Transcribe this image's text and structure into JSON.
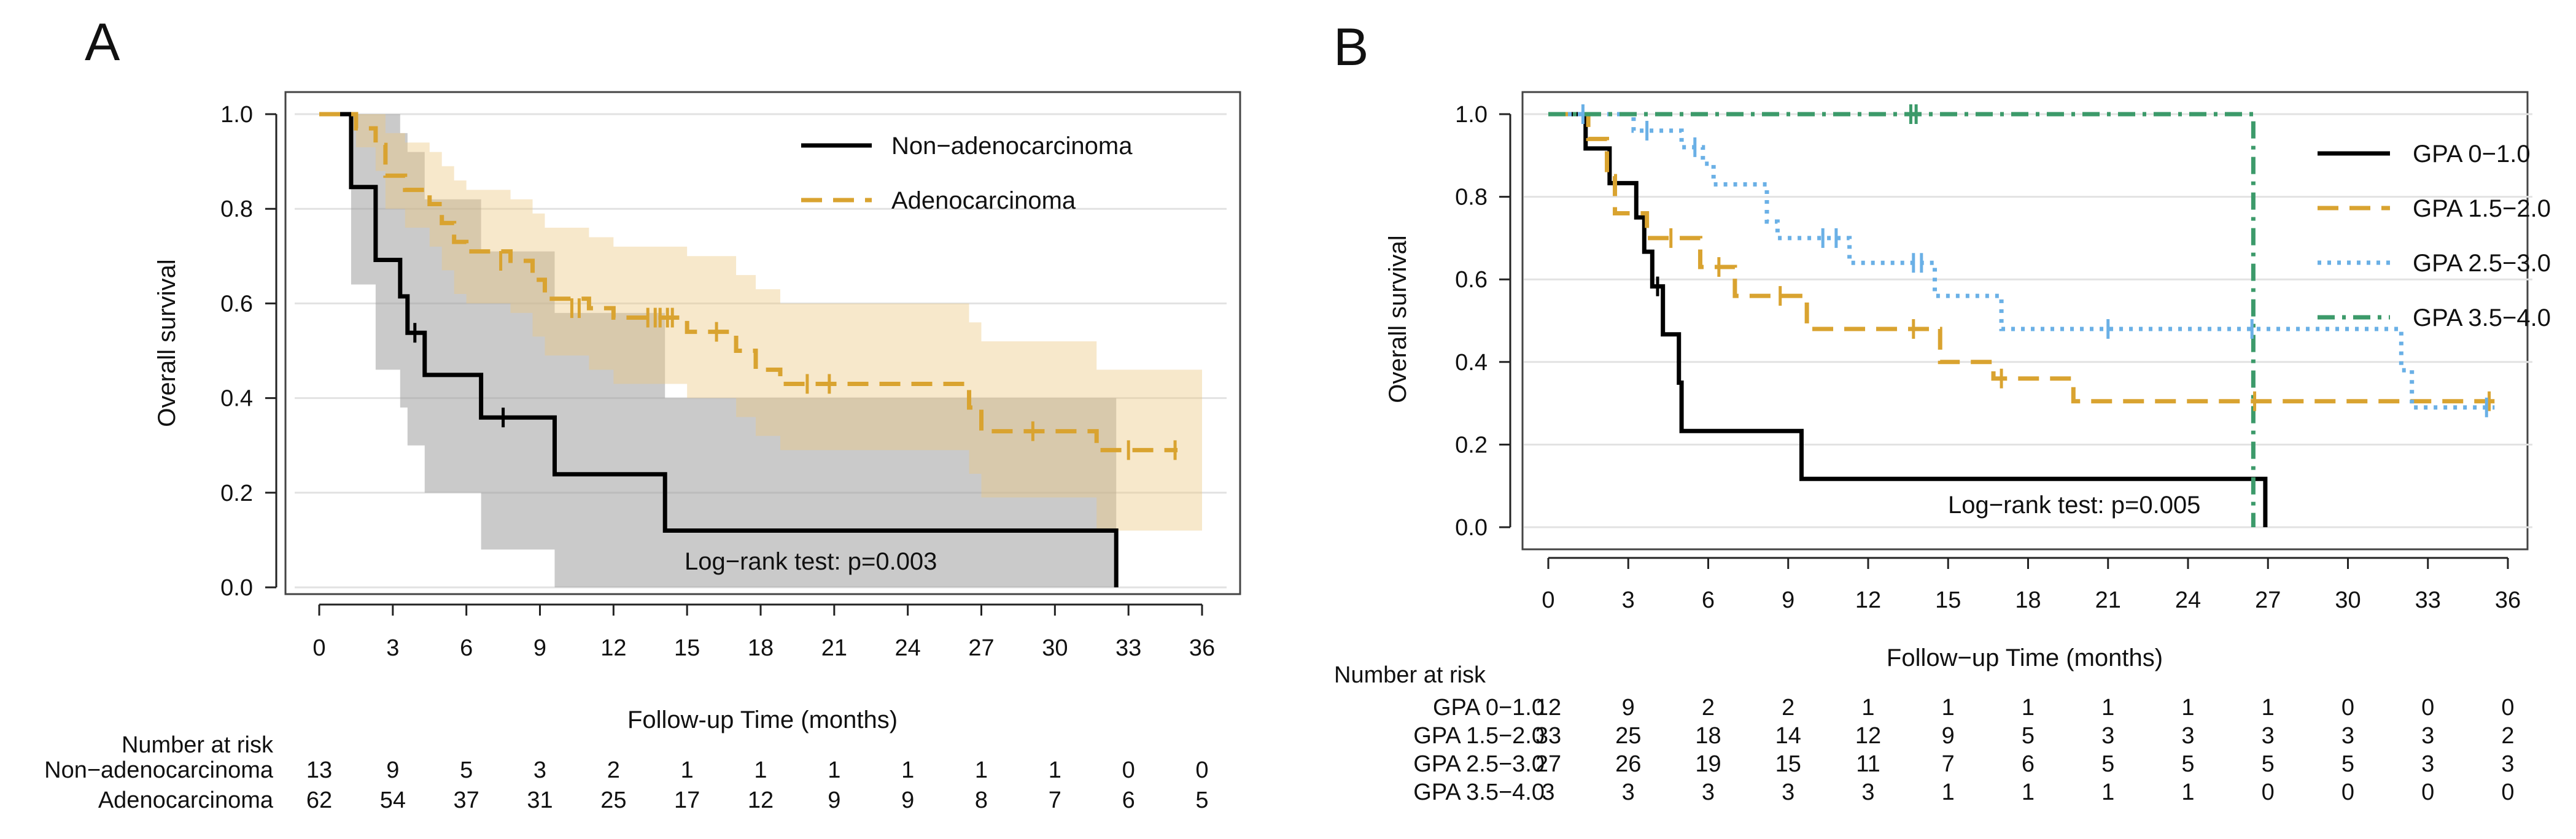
{
  "chart_data": [
    {
      "panel": "A",
      "type": "line",
      "subtype": "kaplan-meier",
      "xlabel": "Follow-up Time (months)",
      "ylabel": "Overall survival",
      "xlim": [
        0,
        36
      ],
      "ylim": [
        0,
        1
      ],
      "xticks": [
        "0",
        "3",
        "6",
        "9",
        "12",
        "15",
        "18",
        "21",
        "24",
        "27",
        "30",
        "33",
        "36"
      ],
      "yticks": [
        "0.0",
        "0.2",
        "0.4",
        "0.6",
        "0.8",
        "1.0"
      ],
      "grid": "horizontal",
      "legend_position": "top-right",
      "annotation": "Log−rank test: p=0.003",
      "series": [
        {
          "name": "Non−adenocarcinoma",
          "color": "#000000",
          "style": "solid",
          "steps": [
            [
              0,
              1.0
            ],
            [
              1.3,
              0.846
            ],
            [
              2.3,
              0.692
            ],
            [
              3.3,
              0.615
            ],
            [
              3.6,
              0.538
            ],
            [
              4.3,
              0.449
            ],
            [
              6.6,
              0.359
            ],
            [
              9.6,
              0.239
            ],
            [
              14.1,
              0.12
            ],
            [
              32.5,
              0.0
            ]
          ],
          "censor": [
            [
              7.5,
              0.359
            ],
            [
              3.9,
              0.538
            ]
          ],
          "ci": [
            [
              0,
              1.0,
              1.0
            ],
            [
              1.3,
              1.0,
              0.64
            ],
            [
              2.3,
              1.0,
              0.46
            ],
            [
              3.3,
              0.96,
              0.38
            ],
            [
              3.6,
              0.92,
              0.3
            ],
            [
              4.3,
              0.82,
              0.2
            ],
            [
              6.6,
              0.71,
              0.08
            ],
            [
              9.6,
              0.58,
              0.0
            ],
            [
              14.1,
              0.4,
              0.0
            ],
            [
              32.5,
              0.0,
              0.0
            ]
          ]
        },
        {
          "name": "Adenocarcinoma",
          "color": "#d9a330",
          "style": "dashed",
          "steps": [
            [
              0,
              1.0
            ],
            [
              1.5,
              0.97
            ],
            [
              2.3,
              0.935
            ],
            [
              2.7,
              0.87
            ],
            [
              3.5,
              0.84
            ],
            [
              4.5,
              0.81
            ],
            [
              5.0,
              0.77
            ],
            [
              5.5,
              0.73
            ],
            [
              6.0,
              0.71
            ],
            [
              7.8,
              0.69
            ],
            [
              8.7,
              0.65
            ],
            [
              9.2,
              0.61
            ],
            [
              11.0,
              0.59
            ],
            [
              12.0,
              0.57
            ],
            [
              15.0,
              0.54
            ],
            [
              17.0,
              0.5
            ],
            [
              17.8,
              0.46
            ],
            [
              18.8,
              0.43
            ],
            [
              26.5,
              0.38
            ],
            [
              27.0,
              0.33
            ],
            [
              31.7,
              0.29
            ],
            [
              35.0,
              0.29
            ]
          ],
          "censor": [
            [
              7.4,
              0.69
            ],
            [
              10.3,
              0.59
            ],
            [
              10.6,
              0.59
            ],
            [
              13.4,
              0.57
            ],
            [
              13.7,
              0.57
            ],
            [
              13.9,
              0.57
            ],
            [
              14.2,
              0.57
            ],
            [
              14.4,
              0.57
            ],
            [
              16.2,
              0.54
            ],
            [
              19.9,
              0.43
            ],
            [
              20.8,
              0.43
            ],
            [
              29.1,
              0.33
            ],
            [
              33.0,
              0.29
            ],
            [
              34.9,
              0.29
            ]
          ],
          "ci": [
            [
              0,
              1.0,
              1.0
            ],
            [
              1.5,
              1.0,
              0.93
            ],
            [
              2.3,
              1.0,
              0.88
            ],
            [
              2.7,
              0.96,
              0.8
            ],
            [
              3.5,
              0.94,
              0.76
            ],
            [
              4.5,
              0.92,
              0.72
            ],
            [
              5.0,
              0.89,
              0.67
            ],
            [
              5.5,
              0.86,
              0.62
            ],
            [
              6.0,
              0.84,
              0.6
            ],
            [
              7.8,
              0.82,
              0.58
            ],
            [
              8.7,
              0.79,
              0.53
            ],
            [
              9.2,
              0.76,
              0.49
            ],
            [
              11.0,
              0.74,
              0.46
            ],
            [
              12.0,
              0.72,
              0.43
            ],
            [
              15.0,
              0.7,
              0.4
            ],
            [
              17.0,
              0.66,
              0.36
            ],
            [
              17.8,
              0.63,
              0.32
            ],
            [
              18.8,
              0.6,
              0.29
            ],
            [
              26.5,
              0.56,
              0.24
            ],
            [
              27.0,
              0.52,
              0.19
            ],
            [
              31.7,
              0.46,
              0.12
            ],
            [
              36.0,
              0.46,
              0.12
            ]
          ]
        }
      ],
      "risk_table": {
        "title": "Number at risk",
        "rows": [
          {
            "label": "Non−adenocarcinoma",
            "values": [
              "13",
              "9",
              "5",
              "3",
              "2",
              "1",
              "1",
              "1",
              "1",
              "1",
              "1",
              "0",
              "0"
            ]
          },
          {
            "label": "Adenocarcinoma",
            "values": [
              "62",
              "54",
              "37",
              "31",
              "25",
              "17",
              "12",
              "9",
              "9",
              "8",
              "7",
              "6",
              "5"
            ]
          }
        ]
      }
    },
    {
      "panel": "B",
      "type": "line",
      "subtype": "kaplan-meier",
      "xlabel": "Follow−up Time (months)",
      "ylabel": "Overall survival",
      "xlim": [
        0,
        36
      ],
      "ylim": [
        0,
        1
      ],
      "xticks": [
        "0",
        "3",
        "6",
        "9",
        "12",
        "15",
        "18",
        "21",
        "24",
        "27",
        "30",
        "33",
        "36"
      ],
      "yticks": [
        "0.0",
        "0.2",
        "0.4",
        "0.6",
        "0.8",
        "1.0"
      ],
      "grid": "horizontal",
      "legend_position": "top-right",
      "annotation": "Log−rank test: p=0.005",
      "series": [
        {
          "name": "GPA 0−1.0",
          "color": "#000000",
          "style": "solid",
          "steps": [
            [
              0,
              1.0
            ],
            [
              1.4,
              0.917
            ],
            [
              2.3,
              0.833
            ],
            [
              3.3,
              0.75
            ],
            [
              3.6,
              0.667
            ],
            [
              3.9,
              0.583
            ],
            [
              4.3,
              0.467
            ],
            [
              4.9,
              0.35
            ],
            [
              5.0,
              0.233
            ],
            [
              9.5,
              0.117
            ],
            [
              26.9,
              0.0
            ]
          ],
          "censor": [
            [
              4.1,
              0.583
            ]
          ]
        },
        {
          "name": "GPA 1.5−2.0",
          "color": "#d9a330",
          "style": "dashed",
          "steps": [
            [
              0,
              1.0
            ],
            [
              1.5,
              0.94
            ],
            [
              2.2,
              0.85
            ],
            [
              2.5,
              0.76
            ],
            [
              3.7,
              0.7
            ],
            [
              5.7,
              0.63
            ],
            [
              7.0,
              0.56
            ],
            [
              9.7,
              0.48
            ],
            [
              14.7,
              0.4
            ],
            [
              16.7,
              0.36
            ],
            [
              19.7,
              0.305
            ],
            [
              35.5,
              0.305
            ]
          ],
          "censor": [
            [
              4.6,
              0.7
            ],
            [
              6.4,
              0.63
            ],
            [
              8.7,
              0.56
            ],
            [
              13.7,
              0.48
            ],
            [
              17.0,
              0.36
            ],
            [
              26.5,
              0.305
            ],
            [
              35.3,
              0.305
            ]
          ]
        },
        {
          "name": "GPA 2.5−3.0",
          "color": "#6ab0e6",
          "style": "dotted",
          "steps": [
            [
              0,
              1.0
            ],
            [
              3.2,
              0.96
            ],
            [
              5.0,
              0.92
            ],
            [
              5.8,
              0.88
            ],
            [
              6.2,
              0.83
            ],
            [
              8.2,
              0.74
            ],
            [
              8.6,
              0.7
            ],
            [
              11.3,
              0.64
            ],
            [
              14.5,
              0.56
            ],
            [
              17.0,
              0.48
            ],
            [
              32.0,
              0.38
            ],
            [
              32.4,
              0.29
            ],
            [
              35.5,
              0.29
            ]
          ],
          "censor": [
            [
              1.3,
              1.0
            ],
            [
              3.7,
              0.96
            ],
            [
              5.5,
              0.92
            ],
            [
              10.3,
              0.7
            ],
            [
              10.8,
              0.7
            ],
            [
              13.7,
              0.64
            ],
            [
              14.0,
              0.64
            ],
            [
              21.0,
              0.48
            ],
            [
              26.4,
              0.48
            ],
            [
              35.2,
              0.29
            ]
          ]
        },
        {
          "name": "GPA 3.5−4.0",
          "color": "#3c9a6a",
          "style": "dashdot",
          "steps": [
            [
              0,
              1.0
            ],
            [
              26.4,
              1.0
            ],
            [
              26.45,
              0.0
            ]
          ],
          "censor": [
            [
              13.6,
              1.0
            ],
            [
              13.8,
              1.0
            ]
          ]
        }
      ],
      "risk_table": {
        "title": "Number at risk",
        "rows": [
          {
            "label": "GPA 0−1.0",
            "values": [
              "12",
              "9",
              "2",
              "2",
              "1",
              "1",
              "1",
              "1",
              "1",
              "1",
              "0",
              "0",
              "0"
            ]
          },
          {
            "label": "GPA 1.5−2.0",
            "values": [
              "33",
              "25",
              "18",
              "14",
              "12",
              "9",
              "5",
              "3",
              "3",
              "3",
              "3",
              "3",
              "2"
            ]
          },
          {
            "label": "GPA 2.5−3.0",
            "values": [
              "27",
              "26",
              "19",
              "15",
              "11",
              "7",
              "6",
              "5",
              "5",
              "5",
              "5",
              "3",
              "3"
            ]
          },
          {
            "label": "GPA 3.5−4.0",
            "values": [
              "3",
              "3",
              "3",
              "3",
              "3",
              "1",
              "1",
              "1",
              "1",
              "0",
              "0",
              "0",
              "0"
            ]
          }
        ]
      }
    }
  ]
}
